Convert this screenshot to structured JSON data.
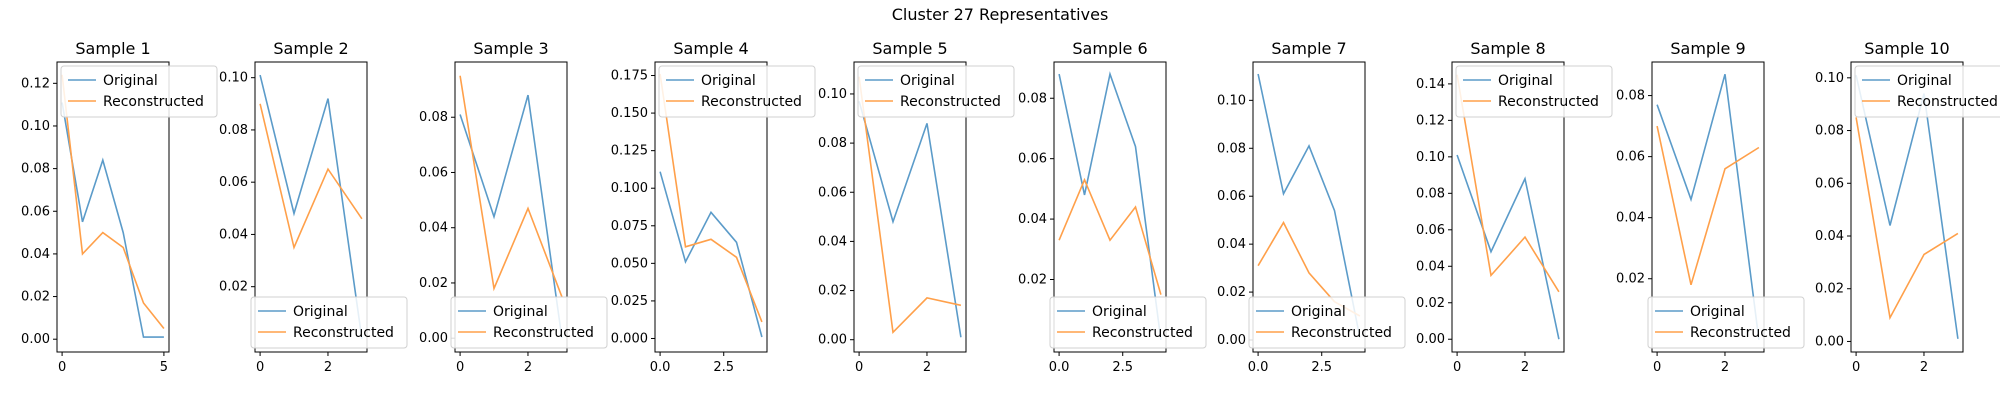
{
  "figure": {
    "title": "Cluster 27 Representatives"
  },
  "legend_labels": [
    "Original",
    "Reconstructed"
  ],
  "colors": {
    "original": "#5b9bc9",
    "reconstructed": "#ffa04a",
    "axes": "#000000"
  },
  "chart_data": [
    {
      "type": "line",
      "title": "Sample 1",
      "xlim": [
        -0.25,
        5.25
      ],
      "ylim": [
        -0.006,
        0.13
      ],
      "xticks": [
        0,
        5
      ],
      "yticks": [
        0.0,
        0.02,
        0.04,
        0.06,
        0.08,
        0.1,
        0.12
      ],
      "ytick_labels": [
        "0.00",
        "0.02",
        "0.04",
        "0.06",
        "0.08",
        "0.10",
        "0.12"
      ],
      "legend_position": "upper-right",
      "series": [
        {
          "name": "Original",
          "x": [
            0,
            1,
            2,
            3,
            4,
            5
          ],
          "y": [
            0.111,
            0.055,
            0.084,
            0.05,
            0.001,
            0.001
          ]
        },
        {
          "name": "Reconstructed",
          "x": [
            0,
            1,
            2,
            3,
            4,
            5
          ],
          "y": [
            0.124,
            0.04,
            0.05,
            0.043,
            0.017,
            0.005
          ]
        }
      ]
    },
    {
      "type": "line",
      "title": "Sample 2",
      "xlim": [
        -0.15,
        3.15
      ],
      "ylim": [
        -0.005,
        0.106
      ],
      "xticks": [
        0,
        2
      ],
      "yticks": [
        0.02,
        0.04,
        0.06,
        0.08,
        0.1
      ],
      "ytick_labels": [
        "0.02",
        "0.04",
        "0.06",
        "0.08",
        "0.10"
      ],
      "legend_position": "lower-left",
      "series": [
        {
          "name": "Original",
          "x": [
            0,
            1,
            2,
            3
          ],
          "y": [
            0.101,
            0.048,
            0.092,
            0.0
          ]
        },
        {
          "name": "Reconstructed",
          "x": [
            0,
            1,
            2,
            3
          ],
          "y": [
            0.09,
            0.035,
            0.065,
            0.046
          ]
        }
      ]
    },
    {
      "type": "line",
      "title": "Sample 3",
      "xlim": [
        -0.15,
        3.15
      ],
      "ylim": [
        -0.005,
        0.1
      ],
      "xticks": [
        0,
        2
      ],
      "yticks": [
        0.0,
        0.02,
        0.04,
        0.06,
        0.08
      ],
      "ytick_labels": [
        "0.00",
        "0.02",
        "0.04",
        "0.06",
        "0.08"
      ],
      "legend_position": "lower-left",
      "series": [
        {
          "name": "Original",
          "x": [
            0,
            1,
            2,
            3
          ],
          "y": [
            0.081,
            0.044,
            0.088,
            0.0
          ]
        },
        {
          "name": "Reconstructed",
          "x": [
            0,
            1,
            2,
            3
          ],
          "y": [
            0.095,
            0.018,
            0.047,
            0.015
          ]
        }
      ]
    },
    {
      "type": "line",
      "title": "Sample 4",
      "xlim": [
        -0.2,
        4.2
      ],
      "ylim": [
        -0.009,
        0.184
      ],
      "xticks": [
        0,
        2.5
      ],
      "xtick_labels": [
        "0.0",
        "2.5"
      ],
      "yticks": [
        0.0,
        0.025,
        0.05,
        0.075,
        0.1,
        0.125,
        0.15,
        0.175
      ],
      "ytick_labels": [
        "0.000",
        "0.025",
        "0.050",
        "0.075",
        "0.100",
        "0.125",
        "0.150",
        "0.175"
      ],
      "legend_position": "upper-right",
      "series": [
        {
          "name": "Original",
          "x": [
            0,
            1,
            2,
            3,
            4
          ],
          "y": [
            0.111,
            0.051,
            0.084,
            0.064,
            0.001
          ]
        },
        {
          "name": "Reconstructed",
          "x": [
            0,
            1,
            2,
            3,
            4
          ],
          "y": [
            0.176,
            0.061,
            0.066,
            0.054,
            0.011
          ]
        }
      ]
    },
    {
      "type": "line",
      "title": "Sample 5",
      "xlim": [
        -0.15,
        3.15
      ],
      "ylim": [
        -0.005,
        0.113
      ],
      "xticks": [
        0,
        2
      ],
      "yticks": [
        0.0,
        0.02,
        0.04,
        0.06,
        0.08,
        0.1
      ],
      "ytick_labels": [
        "0.00",
        "0.02",
        "0.04",
        "0.06",
        "0.08",
        "0.10"
      ],
      "legend_position": "upper-right",
      "series": [
        {
          "name": "Original",
          "x": [
            0,
            1,
            2,
            3
          ],
          "y": [
            0.097,
            0.048,
            0.088,
            0.001
          ]
        },
        {
          "name": "Reconstructed",
          "x": [
            0,
            1,
            2,
            3
          ],
          "y": [
            0.107,
            0.003,
            0.017,
            0.014
          ]
        }
      ]
    },
    {
      "type": "line",
      "title": "Sample 6",
      "xlim": [
        -0.2,
        4.2
      ],
      "ylim": [
        -0.004,
        0.092
      ],
      "xticks": [
        0,
        2.5
      ],
      "xtick_labels": [
        "0.0",
        "2.5"
      ],
      "yticks": [
        0.02,
        0.04,
        0.06,
        0.08
      ],
      "ytick_labels": [
        "0.02",
        "0.04",
        "0.06",
        "0.08"
      ],
      "legend_position": "lower-left",
      "series": [
        {
          "name": "Original",
          "x": [
            0,
            1,
            2,
            3,
            4
          ],
          "y": [
            0.088,
            0.048,
            0.088,
            0.064,
            0.0
          ]
        },
        {
          "name": "Reconstructed",
          "x": [
            0,
            1,
            2,
            3,
            4
          ],
          "y": [
            0.033,
            0.053,
            0.033,
            0.044,
            0.015
          ]
        }
      ]
    },
    {
      "type": "line",
      "title": "Sample 7",
      "xlim": [
        -0.2,
        4.2
      ],
      "ylim": [
        -0.005,
        0.116
      ],
      "xticks": [
        0,
        2.5
      ],
      "xtick_labels": [
        "0.0",
        "2.5"
      ],
      "yticks": [
        0.0,
        0.02,
        0.04,
        0.06,
        0.08,
        0.1
      ],
      "ytick_labels": [
        "0.00",
        "0.02",
        "0.04",
        "0.06",
        "0.08",
        "0.10"
      ],
      "legend_position": "lower-left",
      "series": [
        {
          "name": "Original",
          "x": [
            0,
            1,
            2,
            3,
            4
          ],
          "y": [
            0.111,
            0.061,
            0.081,
            0.054,
            0.001
          ]
        },
        {
          "name": "Reconstructed",
          "x": [
            0,
            1,
            2,
            3,
            4
          ],
          "y": [
            0.031,
            0.049,
            0.028,
            0.016,
            0.01
          ]
        }
      ]
    },
    {
      "type": "line",
      "title": "Sample 8",
      "xlim": [
        -0.15,
        3.15
      ],
      "ylim": [
        -0.007,
        0.152
      ],
      "xticks": [
        0,
        2
      ],
      "yticks": [
        0.0,
        0.02,
        0.04,
        0.06,
        0.08,
        0.1,
        0.12,
        0.14
      ],
      "ytick_labels": [
        "0.00",
        "0.02",
        "0.04",
        "0.06",
        "0.08",
        "0.10",
        "0.12",
        "0.14"
      ],
      "legend_position": "upper-right",
      "series": [
        {
          "name": "Original",
          "x": [
            0,
            1,
            2,
            3
          ],
          "y": [
            0.101,
            0.048,
            0.088,
            0.0
          ]
        },
        {
          "name": "Reconstructed",
          "x": [
            0,
            1,
            2,
            3
          ],
          "y": [
            0.145,
            0.035,
            0.056,
            0.026
          ]
        }
      ]
    },
    {
      "type": "line",
      "title": "Sample 9",
      "xlim": [
        -0.15,
        3.15
      ],
      "ylim": [
        -0.004,
        0.091
      ],
      "xticks": [
        0,
        2
      ],
      "yticks": [
        0.02,
        0.04,
        0.06,
        0.08
      ],
      "ytick_labels": [
        "0.02",
        "0.04",
        "0.06",
        "0.08"
      ],
      "legend_position": "lower-left",
      "series": [
        {
          "name": "Original",
          "x": [
            0,
            1,
            2,
            3
          ],
          "y": [
            0.077,
            0.046,
            0.087,
            0.0
          ]
        },
        {
          "name": "Reconstructed",
          "x": [
            0,
            1,
            2,
            3
          ],
          "y": [
            0.07,
            0.018,
            0.056,
            0.063
          ]
        }
      ]
    },
    {
      "type": "line",
      "title": "Sample 10",
      "xlim": [
        -0.15,
        3.15
      ],
      "ylim": [
        -0.004,
        0.106
      ],
      "xticks": [
        0,
        2
      ],
      "yticks": [
        0.0,
        0.02,
        0.04,
        0.06,
        0.08,
        0.1
      ],
      "ytick_labels": [
        "0.00",
        "0.02",
        "0.04",
        "0.06",
        "0.08",
        "0.10"
      ],
      "legend_position": "upper-right",
      "series": [
        {
          "name": "Original",
          "x": [
            0,
            1,
            2,
            3
          ],
          "y": [
            0.101,
            0.044,
            0.094,
            0.001
          ]
        },
        {
          "name": "Reconstructed",
          "x": [
            0,
            1,
            2,
            3
          ],
          "y": [
            0.085,
            0.009,
            0.033,
            0.041
          ]
        }
      ]
    }
  ]
}
